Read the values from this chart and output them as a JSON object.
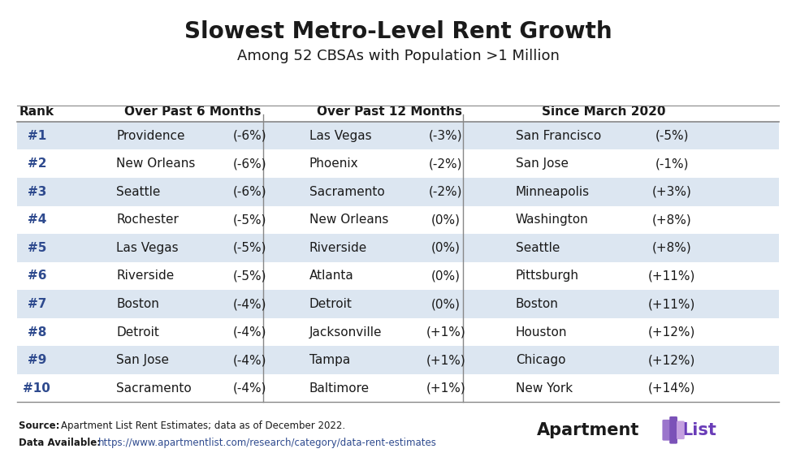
{
  "title": "Slowest Metro-Level Rent Growth",
  "subtitle": "Among 52 CBSAs with Population >1 Million",
  "col_headers": [
    "Rank",
    "Over Past 6 Months",
    "Over Past 12 Months",
    "Since March 2020"
  ],
  "ranks": [
    "#1",
    "#2",
    "#3",
    "#4",
    "#5",
    "#6",
    "#7",
    "#8",
    "#9",
    "#10"
  ],
  "col1_cities": [
    "Providence",
    "New Orleans",
    "Seattle",
    "Rochester",
    "Las Vegas",
    "Riverside",
    "Boston",
    "Detroit",
    "San Jose",
    "Sacramento"
  ],
  "col1_values": [
    "(-6%)",
    "(-6%)",
    "(-6%)",
    "(-5%)",
    "(-5%)",
    "(-5%)",
    "(-4%)",
    "(-4%)",
    "(-4%)",
    "(-4%)"
  ],
  "col2_cities": [
    "Las Vegas",
    "Phoenix",
    "Sacramento",
    "New Orleans",
    "Riverside",
    "Atlanta",
    "Detroit",
    "Jacksonville",
    "Tampa",
    "Baltimore"
  ],
  "col2_values": [
    "(-3%)",
    "(-2%)",
    "(-2%)",
    "(0%)",
    "(0%)",
    "(0%)",
    "(0%)",
    "(+1%)",
    "(+1%)",
    "(+1%)"
  ],
  "col3_cities": [
    "San Francisco",
    "San Jose",
    "Minneapolis",
    "Washington",
    "Seattle",
    "Pittsburgh",
    "Boston",
    "Houston",
    "Chicago",
    "New York"
  ],
  "col3_values": [
    "(-5%)",
    "(-1%)",
    "(+3%)",
    "(+8%)",
    "(+8%)",
    "(+11%)",
    "(+11%)",
    "(+12%)",
    "(+12%)",
    "(+14%)"
  ],
  "bg_color": "#ffffff",
  "row_even_bg": "#dce6f1",
  "row_odd_bg": "#ffffff",
  "title_color": "#1a1a1a",
  "text_color": "#1a1a1a",
  "header_text_color": "#1a1a1a",
  "rank_color": "#2e4a8e",
  "divider_color": "#aaaaaa",
  "source_text": "Apartment List Rent Estimates; data as of December 2022.",
  "data_available_text": "https://www.apartmentlist.com/research/category/data-rent-estimates"
}
